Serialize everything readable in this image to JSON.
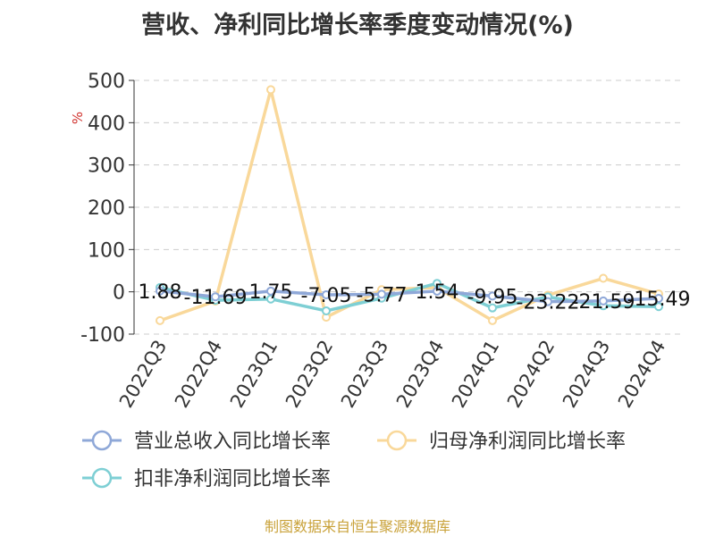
{
  "chart_data": {
    "type": "line",
    "title": "营收、净利同比增长率季度变动情况(%)",
    "ylabel": "%",
    "ylim": [
      -100,
      500
    ],
    "yticks": [
      500,
      400,
      300,
      200,
      100,
      0,
      -100
    ],
    "grid": true,
    "legend_position": "bottom",
    "categories": [
      "2022Q3",
      "2022Q4",
      "2023Q1",
      "2023Q2",
      "2023Q3",
      "2023Q4",
      "2024Q1",
      "2024Q2",
      "2024Q3",
      "2024Q4"
    ],
    "series": [
      {
        "name": "营业总收入同比增长率",
        "color": "#8fa8d8",
        "values": [
          1.88,
          -11.69,
          1.75,
          -7.05,
          -5.77,
          1.54,
          -9.95,
          -23.22,
          -21.59,
          -15.49
        ],
        "labels": [
          "1.88",
          "-11.69",
          "1.75",
          "-7.05",
          "-5.77",
          "1.54",
          "-9.95",
          "-23.22",
          "-21.59",
          "-15.49"
        ]
      },
      {
        "name": "归母净利润同比增长率",
        "color": "#f9d89a",
        "values": [
          -68,
          -22,
          478,
          -60,
          5,
          10,
          -68,
          -8,
          32,
          -5
        ]
      },
      {
        "name": "扣非净利润同比增长率",
        "color": "#7ecfd4",
        "values": [
          10,
          -20,
          -17,
          -45,
          -15,
          20,
          -38,
          -12,
          -33,
          -35
        ]
      }
    ],
    "source": "制图数据来自恒生聚源数据库"
  }
}
